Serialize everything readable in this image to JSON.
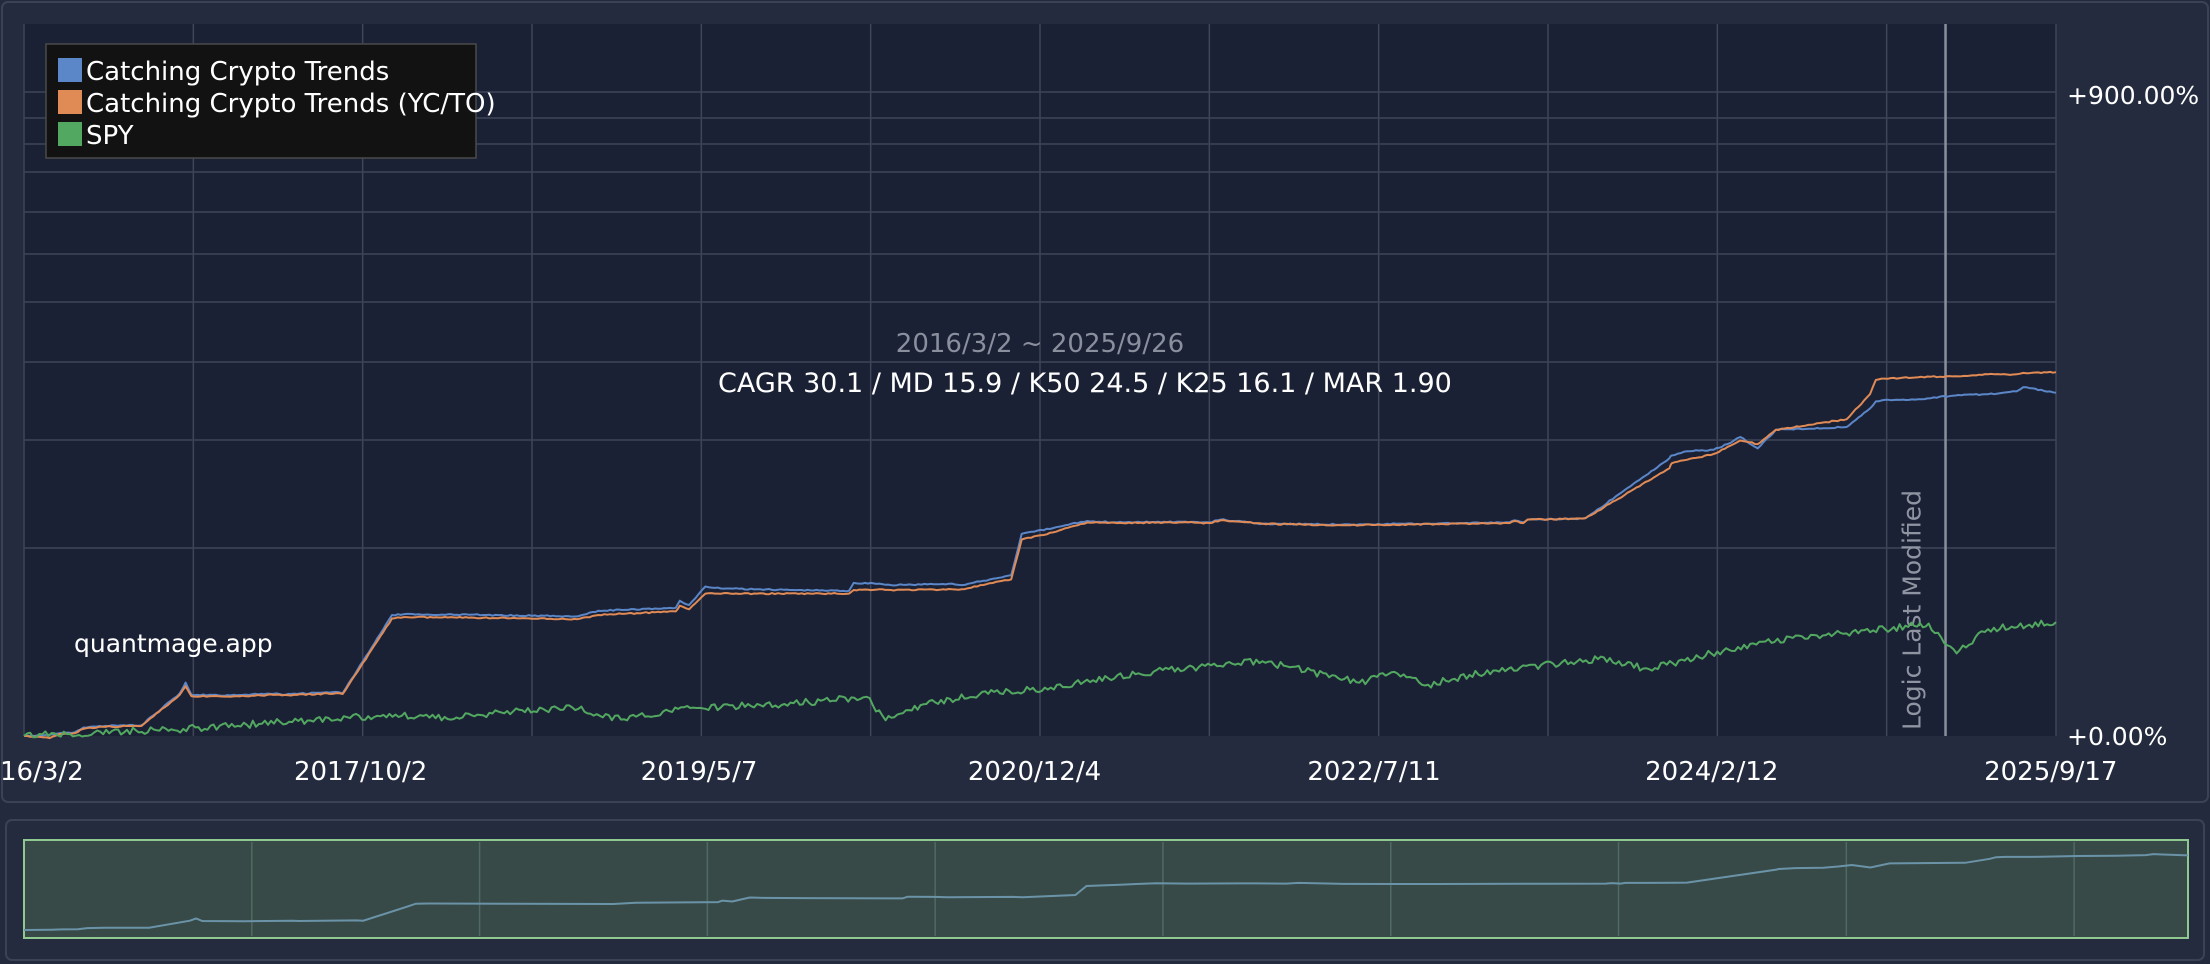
{
  "colors": {
    "background": "#232a3d",
    "plot_background": "#1b2134",
    "grid": "#3e4558",
    "series_crypto": "#5b86c8",
    "series_crypto_ycto": "#e08a55",
    "series_spy": "#52a860",
    "navigator_fill": "#374a48",
    "navigator_border": "#8fc98f",
    "navigator_line": "#6b93a8"
  },
  "legend": {
    "placement": "top-left",
    "items": [
      {
        "label": "Catching Crypto Trends",
        "color": "#5b86c8"
      },
      {
        "label": "Catching Crypto Trends (YC/TO)",
        "color": "#e08a55"
      },
      {
        "label": "SPY",
        "color": "#52a860"
      }
    ]
  },
  "annotations": {
    "date_range": "2016/3/2 ~ 2025/9/26",
    "stats": "CAGR 30.1 / MD 15.9 / K50 24.5 / K25 16.1 / MAR 1.90",
    "watermark": "quantmage.app",
    "marker_label": "Logic Last Modified"
  },
  "chart_data": {
    "type": "line",
    "x_tick_labels": [
      "16/3/2",
      "2017/10/2",
      "2019/5/7",
      "2020/12/4",
      "2022/7/11",
      "2024/2/12",
      "2025/9/17"
    ],
    "x_range": [
      "2016/3/2",
      "2025/9/26"
    ],
    "y_tick_labels": [
      "+0.00%",
      "+900.00%"
    ],
    "ylim": [
      0,
      1000
    ],
    "grid": true,
    "legend_placement": "top-left",
    "vertical_marker": {
      "label": "Logic Last Modified",
      "x": "2025/3/20"
    },
    "series": [
      {
        "name": "Catching Crypto Trends",
        "color": "#5b86c8",
        "x": [
          "2016/3/2",
          "2016/4/15",
          "2016/5/2",
          "2016/5/28",
          "2016/6/12",
          "2016/7/10",
          "2016/9/20",
          "2016/11/25",
          "2016/12/5",
          "2016/12/15",
          "2017/2/20",
          "2017/5/10",
          "2017/5/20",
          "2017/8/20",
          "2017/9/1",
          "2017/11/10",
          "2017/11/25",
          "2017/12/15",
          "2018/5/1",
          "2018/10/10",
          "2018/11/15",
          "2019/3/28",
          "2019/4/4",
          "2019/4/20",
          "2019/5/18",
          "2019/6/3",
          "2019/8/15",
          "2020/1/20",
          "2020/1/28",
          "2020/3/12",
          "2020/4/1",
          "2020/7/15",
          "2020/8/1",
          "2020/10/25",
          "2020/11/12",
          "2021/1/5",
          "2021/2/5",
          "2021/3/5",
          "2021/4/25",
          "2021/7/15",
          "2021/8/15",
          "2021/10/1",
          "2021/10/20",
          "2022/1/1",
          "2022/6/1",
          "2022/12/1",
          "2023/3/1",
          "2023/3/10",
          "2023/3/25",
          "2023/4/1",
          "2023/6/20",
          "2023/7/10",
          "2023/12/1",
          "2023/12/5",
          "2024/1/1",
          "2024/2/15",
          "2024/3/10",
          "2024/4/1",
          "2024/5/1",
          "2024/6/1",
          "2024/10/1",
          "2024/11/10",
          "2024/11/20",
          "2024/12/5",
          "2025/2/1",
          "2025/4/1",
          "2025/6/1",
          "2025/7/20",
          "2025/8/1",
          "2025/9/26"
        ],
        "values": [
          0,
          2,
          4,
          5,
          12,
          14,
          15,
          60,
          75,
          58,
          57,
          60,
          58,
          62,
          60,
          150,
          170,
          171,
          170,
          168,
          176,
          180,
          190,
          184,
          210,
          208,
          206,
          204,
          215,
          214,
          212,
          214,
          212,
          226,
          284,
          292,
          298,
          302,
          300,
          301,
          301,
          300,
          304,
          298,
          297,
          299,
          300,
          303,
          300,
          304,
          305,
          306,
          390,
          394,
          400,
          402,
          410,
          420,
          404,
          430,
          434,
          460,
          470,
          472,
          473,
          478,
          480,
          484,
          490,
          482
        ]
      },
      {
        "name": "Catching Crypto Trends (YC/TO)",
        "color": "#e08a55",
        "x": [
          "2016/3/2",
          "2016/4/15",
          "2016/5/2",
          "2016/5/28",
          "2016/6/12",
          "2016/7/10",
          "2016/9/20",
          "2016/11/25",
          "2016/12/5",
          "2016/12/15",
          "2017/2/20",
          "2017/5/10",
          "2017/5/20",
          "2017/8/20",
          "2017/9/1",
          "2017/11/10",
          "2017/11/25",
          "2017/12/15",
          "2018/5/1",
          "2018/10/10",
          "2018/11/15",
          "2019/3/28",
          "2019/4/4",
          "2019/4/20",
          "2019/5/18",
          "2019/6/3",
          "2019/8/15",
          "2020/1/20",
          "2020/1/28",
          "2020/3/12",
          "2020/4/1",
          "2020/7/15",
          "2020/8/1",
          "2020/10/25",
          "2020/11/12",
          "2021/1/5",
          "2021/2/5",
          "2021/3/5",
          "2021/4/25",
          "2021/7/15",
          "2021/8/15",
          "2021/10/1",
          "2021/10/20",
          "2022/1/1",
          "2022/6/1",
          "2022/12/1",
          "2023/3/1",
          "2023/3/10",
          "2023/3/25",
          "2023/4/1",
          "2023/6/20",
          "2023/7/10",
          "2023/12/1",
          "2023/12/5",
          "2024/1/1",
          "2024/2/15",
          "2024/3/10",
          "2024/4/1",
          "2024/5/1",
          "2024/6/1",
          "2024/10/1",
          "2024/11/10",
          "2024/11/20",
          "2024/12/5",
          "2025/2/1",
          "2025/4/1",
          "2025/6/1",
          "2025/7/20",
          "2025/8/1",
          "2025/9/26"
        ],
        "values": [
          0,
          -3,
          3,
          4,
          10,
          13,
          14,
          58,
          70,
          56,
          55,
          58,
          57,
          60,
          59,
          146,
          165,
          167,
          166,
          164,
          170,
          175,
          183,
          178,
          200,
          200,
          200,
          200,
          205,
          206,
          205,
          206,
          206,
          220,
          276,
          286,
          294,
          300,
          299,
          300,
          300,
          299,
          303,
          298,
          296,
          298,
          299,
          302,
          299,
          304,
          305,
          306,
          376,
          383,
          388,
          396,
          406,
          415,
          410,
          430,
          445,
          480,
          500,
          502,
          504,
          505,
          508,
          508,
          510,
          511
        ]
      },
      {
        "name": "SPY",
        "color": "#52a860",
        "x": [
          "2016/3/2",
          "2016/7/1",
          "2016/12/1",
          "2017/6/1",
          "2017/12/1",
          "2018/2/8",
          "2018/6/1",
          "2018/10/1",
          "2018/12/24",
          "2019/4/1",
          "2019/10/1",
          "2020/2/19",
          "2020/3/23",
          "2020/6/1",
          "2020/8/31",
          "2021/1/1",
          "2021/6/1",
          "2021/12/31",
          "2022/6/16",
          "2022/8/15",
          "2022/10/12",
          "2023/2/1",
          "2023/7/31",
          "2023/10/27",
          "2024/3/28",
          "2024/7/16",
          "2024/12/6",
          "2025/2/19",
          "2025/4/8",
          "2025/6/1",
          "2025/9/26"
        ],
        "values": [
          0,
          5,
          10,
          20,
          30,
          25,
          33,
          40,
          23,
          38,
          45,
          55,
          22,
          45,
          58,
          68,
          88,
          105,
          75,
          90,
          72,
          92,
          108,
          94,
          125,
          140,
          150,
          158,
          116,
          150,
          160
        ]
      }
    ]
  },
  "navigator": {
    "series": "Catching Crypto Trends"
  }
}
